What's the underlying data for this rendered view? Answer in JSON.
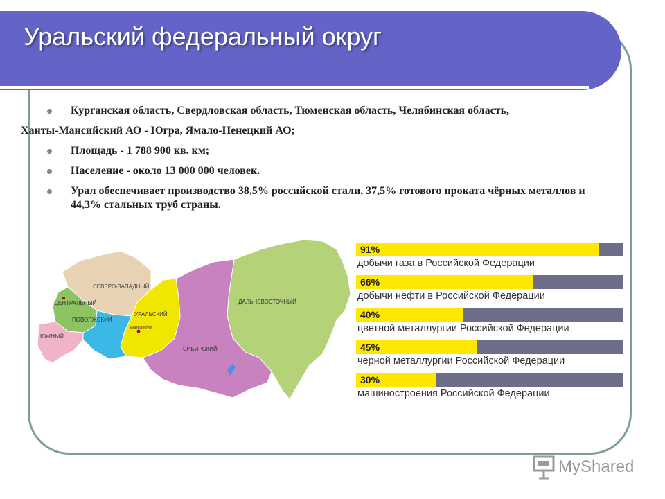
{
  "slide": {
    "title": "Уральский федеральный округ",
    "bullets": [
      {
        "text": "Курганская область, Свердловская область, Тюменская область, Челябинская область,",
        "bullet": true
      },
      {
        "text": "Ханты-Мансийский АО - Югра, Ямало-Ненецкий АО;",
        "bullet": false
      },
      {
        "text": "Площадь - 1 788 900 кв. км;",
        "bullet": true
      },
      {
        "text": "Население - около 13 000 000 человек.",
        "bullet": true
      },
      {
        "text": "Урал обеспечивает производство 38,5% российской стали, 37,5% готового проката чёрных металлов и 44,3% стальных труб страны.",
        "bullet": true
      }
    ]
  },
  "map": {
    "regions": [
      {
        "label": "СЕВЕРО-ЗАПАДНЫЙ",
        "color": "#e8d2b4"
      },
      {
        "label": "ЦЕНТРАЛЬНЫЙ",
        "color": "#8cc464"
      },
      {
        "label": "ПОВОЛЖСКИЙ",
        "color": "#3cb8e6"
      },
      {
        "label": "ЮЖНЫЙ",
        "color": "#f0b4c8"
      },
      {
        "label": "УРАЛЬСКИЙ",
        "color": "#f0e600"
      },
      {
        "label": "СИБИРСКИЙ",
        "color": "#c882c0"
      },
      {
        "label": "ДАЛЬНЕВОСТОЧНЫЙ",
        "color": "#b4d278"
      }
    ],
    "city_label": "Екатеринбург"
  },
  "stats": [
    {
      "pct_label": "91%",
      "value": 91,
      "label": "добычи газа в Российской Федерации"
    },
    {
      "pct_label": "66%",
      "value": 66,
      "label": "добычи нефти  в Российской Федерации"
    },
    {
      "pct_label": "40%",
      "value": 40,
      "label": "цветной металлургии  Российской Федерации"
    },
    {
      "pct_label": "45%",
      "value": 45,
      "label": "черной металлургии  Российской Федерации"
    },
    {
      "pct_label": "30%",
      "value": 30,
      "label": "машиностроения Российской Федерации"
    }
  ],
  "watermark": {
    "text": "MyShared",
    "icon": "presentation-board-icon"
  }
}
